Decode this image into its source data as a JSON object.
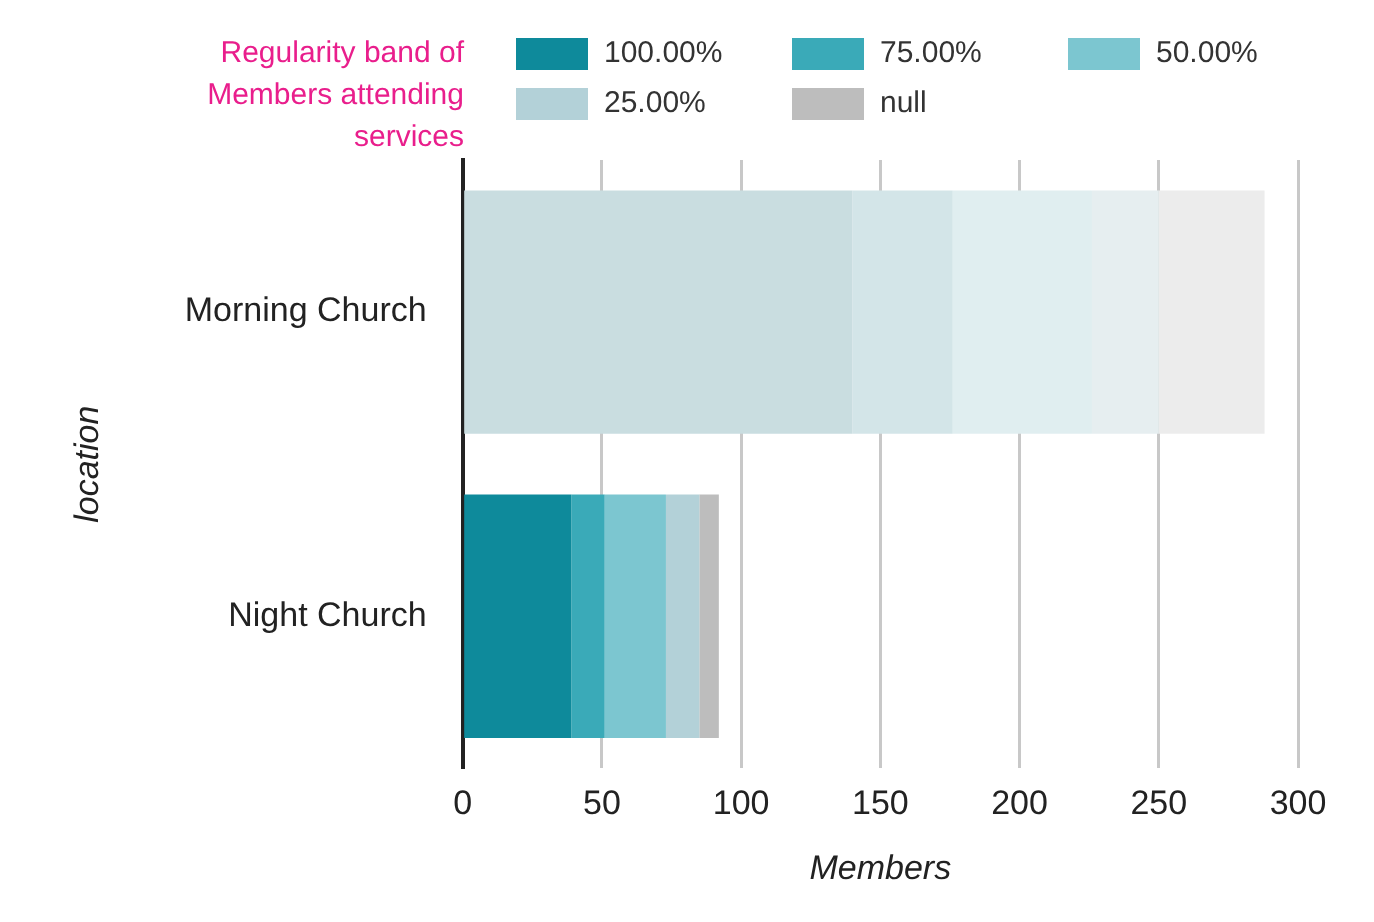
{
  "chart_data": {
    "type": "bar",
    "orientation": "horizontal",
    "stacked": true,
    "xlabel": "Members",
    "ylabel": "location",
    "legend_title": "Regularity band of Members attending services",
    "legend": "top",
    "grid": "x",
    "categories": [
      "Morning Church",
      "Night Church"
    ],
    "xlim": [
      0,
      300
    ],
    "xticks": [
      0,
      50,
      100,
      150,
      200,
      250,
      300
    ],
    "series": [
      {
        "name": "100.00%",
        "color": "#0e8a9b",
        "colors": [
          "#c9dde0",
          "#0e8a9b"
        ],
        "values": [
          140,
          39
        ]
      },
      {
        "name": "75.00%",
        "color": "#3aaab8",
        "colors": [
          "#d3e5e8",
          "#3aaab8"
        ],
        "values": [
          36,
          12
        ]
      },
      {
        "name": "50.00%",
        "color": "#7cc6d0",
        "colors": [
          "#e0eef0",
          "#7cc6d0"
        ],
        "values": [
          50,
          22
        ]
      },
      {
        "name": "25.00%",
        "color": "#b3d1d8",
        "colors": [
          "#e6eef0",
          "#b3d1d8"
        ],
        "values": [
          24,
          12
        ]
      },
      {
        "name": "null",
        "color": "#bdbdbd",
        "colors": [
          "#ececec",
          "#bdbdbd"
        ],
        "values": [
          38,
          7
        ]
      }
    ]
  }
}
